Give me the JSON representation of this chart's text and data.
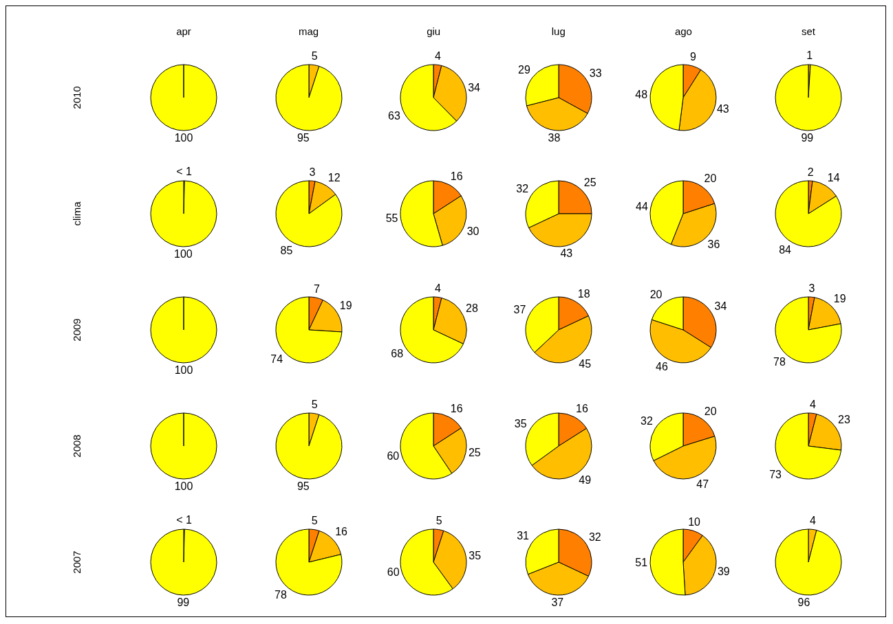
{
  "chart_data": [
    {
      "type": "pie",
      "title": "apr",
      "ylabel": "2010",
      "values": [
        100
      ],
      "colors": [
        "#ffff00"
      ],
      "data_labels": true
    },
    {
      "type": "pie",
      "title": "mag",
      "values": [
        5,
        95
      ],
      "colors": [
        "#ffbf00",
        "#ffff00"
      ],
      "data_labels": true
    },
    {
      "type": "pie",
      "title": "giu",
      "values": [
        4,
        34,
        63
      ],
      "colors": [
        "#ff8000",
        "#ffbf00",
        "#ffff00"
      ],
      "data_labels": true
    },
    {
      "type": "pie",
      "title": "lug",
      "values": [
        33,
        38,
        29
      ],
      "colors": [
        "#ff8000",
        "#ffbf00",
        "#ffff00"
      ],
      "data_labels": true
    },
    {
      "type": "pie",
      "title": "ago",
      "values": [
        9,
        43,
        48
      ],
      "colors": [
        "#ff8000",
        "#ffbf00",
        "#ffff00"
      ],
      "data_labels": true
    },
    {
      "type": "pie",
      "title": "set",
      "values": [
        1,
        99
      ],
      "colors": [
        "#ffbf00",
        "#ffff00"
      ],
      "data_labels": true
    },
    {
      "type": "pie",
      "ylabel": "clima",
      "values": [
        0.4,
        100
      ],
      "colors": [
        "#ff8000",
        "#ffff00"
      ],
      "value_labels": [
        "< 1",
        "100"
      ]
    },
    {
      "type": "pie",
      "values": [
        3,
        12,
        85
      ],
      "colors": [
        "#ff8000",
        "#ffbf00",
        "#ffff00"
      ],
      "data_labels": true
    },
    {
      "type": "pie",
      "values": [
        16,
        30,
        55
      ],
      "colors": [
        "#ff8000",
        "#ffbf00",
        "#ffff00"
      ],
      "data_labels": true
    },
    {
      "type": "pie",
      "values": [
        25,
        43,
        32
      ],
      "colors": [
        "#ff8000",
        "#ffbf00",
        "#ffff00"
      ],
      "data_labels": true
    },
    {
      "type": "pie",
      "values": [
        20,
        36,
        44
      ],
      "colors": [
        "#ff8000",
        "#ffbf00",
        "#ffff00"
      ],
      "data_labels": true
    },
    {
      "type": "pie",
      "values": [
        2,
        14,
        84
      ],
      "colors": [
        "#ff8000",
        "#ffbf00",
        "#ffff00"
      ],
      "data_labels": true
    },
    {
      "type": "pie",
      "ylabel": "2009",
      "values": [
        100
      ],
      "colors": [
        "#ffff00"
      ],
      "data_labels": true
    },
    {
      "type": "pie",
      "values": [
        7,
        19,
        74
      ],
      "colors": [
        "#ff8000",
        "#ffbf00",
        "#ffff00"
      ],
      "data_labels": true
    },
    {
      "type": "pie",
      "values": [
        4,
        28,
        68
      ],
      "colors": [
        "#ff8000",
        "#ffbf00",
        "#ffff00"
      ],
      "data_labels": true
    },
    {
      "type": "pie",
      "values": [
        18,
        45,
        37
      ],
      "colors": [
        "#ff8000",
        "#ffbf00",
        "#ffff00"
      ],
      "data_labels": true
    },
    {
      "type": "pie",
      "values": [
        34,
        46,
        20
      ],
      "colors": [
        "#ff8000",
        "#ffbf00",
        "#ffff00"
      ],
      "data_labels": true
    },
    {
      "type": "pie",
      "values": [
        3,
        19,
        78
      ],
      "colors": [
        "#ff8000",
        "#ffbf00",
        "#ffff00"
      ],
      "data_labels": true
    },
    {
      "type": "pie",
      "ylabel": "2008",
      "values": [
        100
      ],
      "colors": [
        "#ffff00"
      ],
      "data_labels": true
    },
    {
      "type": "pie",
      "values": [
        5,
        95
      ],
      "colors": [
        "#ffbf00",
        "#ffff00"
      ],
      "data_labels": true
    },
    {
      "type": "pie",
      "values": [
        16,
        25,
        60
      ],
      "colors": [
        "#ff8000",
        "#ffbf00",
        "#ffff00"
      ],
      "data_labels": true
    },
    {
      "type": "pie",
      "values": [
        16,
        49,
        35
      ],
      "colors": [
        "#ff8000",
        "#ffbf00",
        "#ffff00"
      ],
      "data_labels": true
    },
    {
      "type": "pie",
      "values": [
        20,
        47,
        32
      ],
      "colors": [
        "#ff8000",
        "#ffbf00",
        "#ffff00"
      ],
      "data_labels": true
    },
    {
      "type": "pie",
      "values": [
        4,
        23,
        73
      ],
      "colors": [
        "#ff8000",
        "#ffbf00",
        "#ffff00"
      ],
      "data_labels": true
    },
    {
      "type": "pie",
      "ylabel": "2007",
      "values": [
        0.4,
        99
      ],
      "colors": [
        "#ff8000",
        "#ffff00"
      ],
      "value_labels": [
        "< 1",
        "99"
      ]
    },
    {
      "type": "pie",
      "values": [
        5,
        16,
        78
      ],
      "colors": [
        "#ff8000",
        "#ffbf00",
        "#ffff00"
      ],
      "data_labels": true
    },
    {
      "type": "pie",
      "values": [
        5,
        35,
        60
      ],
      "colors": [
        "#ff8000",
        "#ffbf00",
        "#ffff00"
      ],
      "data_labels": true
    },
    {
      "type": "pie",
      "values": [
        32,
        37,
        31
      ],
      "colors": [
        "#ff8000",
        "#ffbf00",
        "#ffff00"
      ],
      "data_labels": true
    },
    {
      "type": "pie",
      "values": [
        10,
        39,
        51
      ],
      "colors": [
        "#ff8000",
        "#ffbf00",
        "#ffff00"
      ],
      "data_labels": true
    },
    {
      "type": "pie",
      "values": [
        4,
        96
      ],
      "colors": [
        "#ffbf00",
        "#ffff00"
      ],
      "data_labels": true
    }
  ]
}
